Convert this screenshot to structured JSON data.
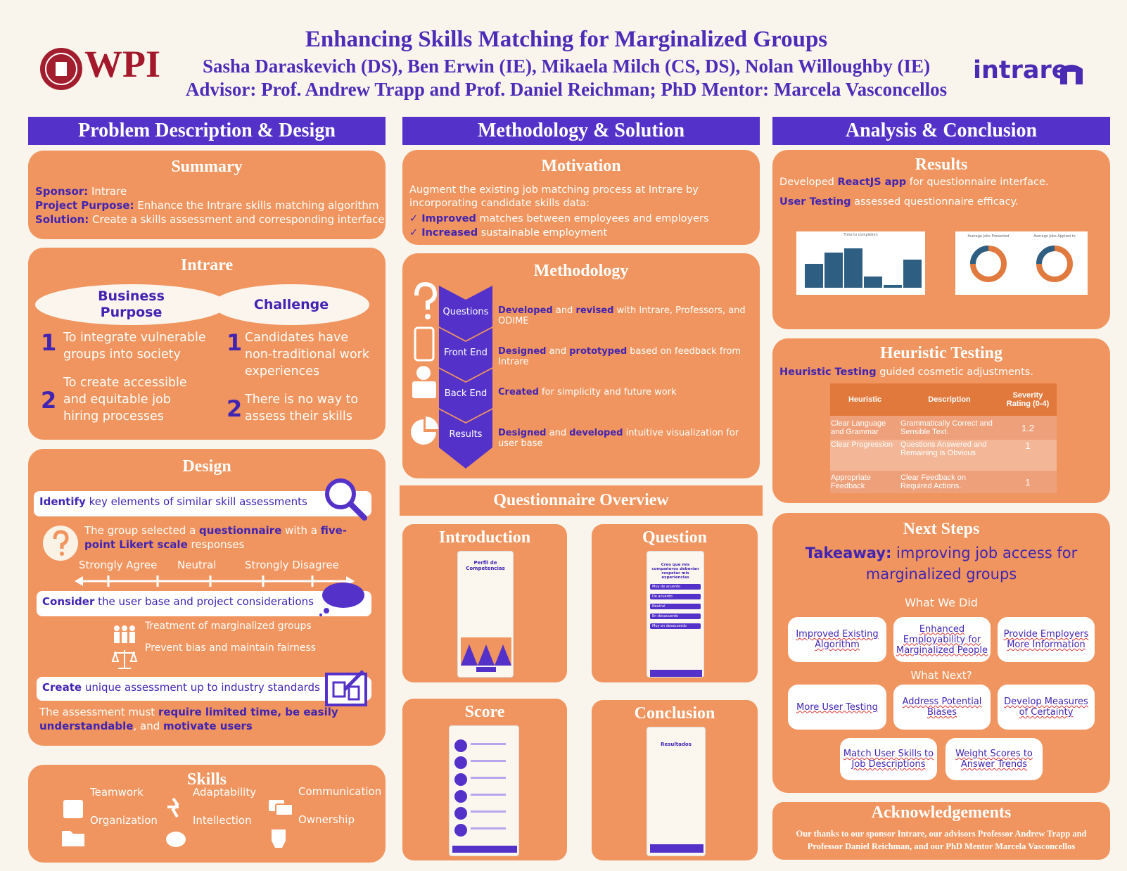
{
  "header": {
    "title": "Enhancing Skills Matching for Marginalized Groups",
    "authors": "Sasha Daraskevich (DS), Ben Erwin (IE), Mikaela Milch (CS, DS),  Nolan Willoughby (IE)",
    "advisors": "Advisor: Prof. Andrew Trapp and Prof. Daniel Reichman; PhD Mentor: Marcela Vasconcellos",
    "left_logo": "WPI",
    "right_logo": "intrare"
  },
  "columns": [
    "Problem Description & Design",
    "Methodology & Solution",
    "Analysis & Conclusion"
  ],
  "summary": {
    "title": "Summary",
    "items": [
      {
        "label": "Sponsor:",
        "text": "Intrare"
      },
      {
        "label": "Project Purpose:",
        "text": "Enhance the Intrare skills matching algorithm"
      },
      {
        "label": "Solution:",
        "text": "Create a skills assessment and corresponding interface"
      }
    ]
  },
  "intrare": {
    "title": "Intrare",
    "business": {
      "heading": "Business Purpose",
      "items": [
        {
          "num": 1,
          "text": "To integrate vulnerable groups into society"
        },
        {
          "num": 2,
          "text": "To create accessible and equitable job hiring processes"
        }
      ]
    },
    "challenge": {
      "heading": "Challenge",
      "items": [
        {
          "num": 1,
          "text": "Candidates have non-traditional work experiences"
        },
        {
          "num": 2,
          "text": "There is no way to assess their skills"
        }
      ]
    }
  },
  "design": {
    "title": "Design",
    "identify": [
      {
        "bold": "Identify"
      },
      " key elements of similar skill assessments"
    ],
    "likert": [
      "The group selected a ",
      {
        "bold": "questionnaire"
      },
      " with a ",
      {
        "bold": "five-point Likert scale"
      },
      " responses"
    ],
    "scale": [
      "Strongly Agree",
      "Neutral",
      "Strongly Disagree"
    ],
    "consider": [
      {
        "bold": "Consider"
      },
      " the user base and project considerations"
    ],
    "considerations": [
      "Treatment of marginalized groups",
      "Prevent bias and maintain fairness"
    ],
    "create": [
      {
        "bold": "Create"
      },
      " unique assessment up to industry standards"
    ],
    "requirement": [
      "The assessment must ",
      {
        "bold": "require limited time, be easily understandable"
      },
      ", and ",
      {
        "bold": "motivate users"
      }
    ]
  },
  "skills": {
    "title": "Skills",
    "items": [
      "Teamwork",
      "Adaptability",
      "Communication",
      "Organization",
      "Intellection",
      "Ownership"
    ]
  },
  "motivation": {
    "title": "Motivation",
    "intro": "Augment the existing job matching process at Intrare by incorporating candidate skills data:",
    "checks": [
      [
        {
          "bold": "Improved"
        },
        " matches between employees and employers"
      ],
      [
        {
          "bold": "Increased"
        },
        " sustainable employment"
      ]
    ]
  },
  "methodology": {
    "title": "Methodology",
    "steps": [
      {
        "label": "Questions",
        "text": [
          {
            "bold": "Developed"
          },
          " and ",
          {
            "bold": "revised"
          },
          " with Intrare, Professors, and ODIME"
        ]
      },
      {
        "label": "Front End",
        "text": [
          {
            "bold": "Designed"
          },
          " and ",
          {
            "bold": "prototyped"
          },
          " based on feedback from Intrare"
        ]
      },
      {
        "label": "Back End",
        "text": [
          {
            "bold": "Created"
          },
          " for simplicity and future work"
        ]
      },
      {
        "label": "Results",
        "text": [
          {
            "bold": "Designed"
          },
          " and ",
          {
            "bold": "developed"
          },
          " intuitive visualization for user base"
        ]
      }
    ]
  },
  "questionnaire": {
    "title": "Questionnaire Overview",
    "introduction": {
      "title": "Introduction",
      "screen_title": "Perfil de Competencias"
    },
    "question": {
      "title": "Question",
      "prompt": "Creo que mis compañeros deberían respetar mis experiencias",
      "options": [
        "Muy de acuerdo",
        "De acuerdo",
        "Neutral",
        "En desacuerdo",
        "Muy en desacuerdo"
      ]
    },
    "score": {
      "title": "Score"
    },
    "conclusion": {
      "title": "Conclusion",
      "screen_title": "Resultados"
    }
  },
  "results": {
    "title": "Results",
    "lines": [
      [
        "Developed ",
        {
          "bold": "ReactJS app"
        },
        " for questionnaire interface."
      ],
      [
        {
          "bold": "User Testing"
        },
        " assessed questionnaire efficacy."
      ]
    ],
    "charts": [
      "Time to completion",
      "Average Jobs Presented",
      "Average Jobs Applied to"
    ]
  },
  "heuristic": {
    "title": "Heuristic Testing",
    "intro": [
      {
        "bold": "Heuristic Testing"
      },
      " guided cosmetic adjustments."
    ],
    "table": {
      "header": [
        "Heuristic",
        "Description",
        "Severity Rating (0-4)"
      ],
      "rows": [
        [
          "Clear Language and Grammar",
          "Grammatically Correct and Sensible Text.",
          1.2
        ],
        [
          "Clear Progression",
          "Questions Answered and Remaining is Obvious",
          1
        ],
        [
          "Appropriate Feedback",
          "Clear Feedback on Required Actions.",
          1
        ]
      ]
    }
  },
  "next_steps": {
    "title": "Next Steps",
    "takeaway": [
      {
        "bold": "Takeaway:"
      },
      " improving job access for marginalized groups"
    ],
    "did_heading": "What We Did",
    "did": [
      "Improved Existing Algorithm",
      "Enhanced Employability for Marginalized People",
      "Provide Employers More Information"
    ],
    "next_heading": "What Next?",
    "next": [
      "More User Testing",
      "Address Potential Biases",
      "Develop Measures of Certainty",
      "Match User Skills to Job Descriptions",
      "Weight Scores to Answer Trends"
    ]
  },
  "acknowledgements": {
    "title": "Acknowledgements",
    "text": "Our thanks to our sponsor Intrare, our advisors Professor Andrew Trapp and Professor Daniel Reichman, and our PhD Mentor Marcela Vasconcellos"
  }
}
